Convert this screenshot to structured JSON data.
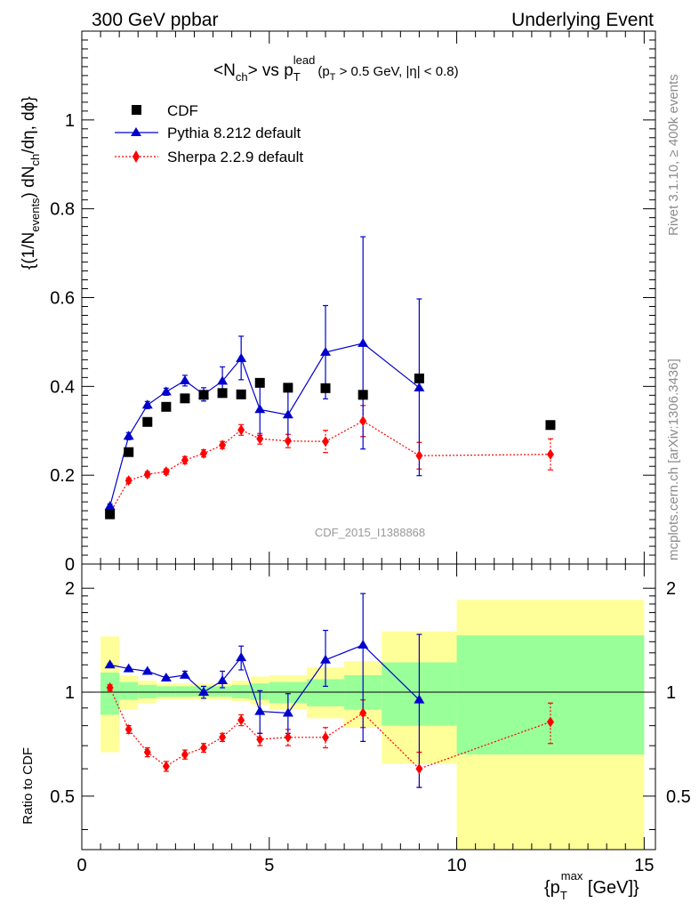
{
  "header": {
    "left": "300 GeV ppbar",
    "right": "Underlying Event"
  },
  "side_labels": {
    "rivet": "Rivet 3.1.10, ≥ 400k events",
    "mcplots": "mcplots.cern.ch [arXiv:1306.3436]"
  },
  "plot_title": {
    "main": "<N",
    "main_sub": "ch",
    "mid": "> vs p",
    "mid_sub": "T",
    "mid_sup": "lead",
    "cut_open": "(p",
    "cut_sub": "T",
    "cut_rest": " > 0.5 GeV, |η| < 0.8)"
  },
  "axis_labels": {
    "y_p1": "{(1/N",
    "y_sub1": "events",
    "y_p2": ") dN",
    "y_sub2": "ch",
    "y_p3": "/dη, dϕ}",
    "ratio_y": "Ratio to CDF",
    "x_p1": "{p",
    "x_sub": "T",
    "x_sup": "max",
    "x_p2": " [GeV]}"
  },
  "analysis_id": "CDF_2015_I1388868",
  "colors": {
    "data": "#000000",
    "pythia": "#0000cc",
    "sherpa": "#ff0000",
    "band_inner": "#99ff99",
    "band_outer": "#ffff99"
  },
  "chart_data": [
    {
      "type": "scatter",
      "panel": "main",
      "xlim": [
        0,
        15.3
      ],
      "ylim": [
        0,
        1.2
      ],
      "x_ticks": [
        0,
        5,
        10,
        15
      ],
      "y_ticks": [
        0,
        0.2,
        0.4,
        0.6,
        0.8,
        1
      ],
      "y_tick_labels": [
        "0",
        "0.2",
        "0.4",
        "0.6",
        "0.8",
        "1"
      ],
      "legend": "top-left",
      "series": [
        {
          "name": "CDF",
          "marker": "square",
          "x": [
            0.75,
            1.25,
            1.75,
            2.25,
            2.75,
            3.25,
            3.75,
            4.25,
            4.75,
            5.5,
            6.5,
            7.5,
            9.0,
            12.5
          ],
          "y": [
            0.112,
            0.252,
            0.32,
            0.354,
            0.373,
            0.381,
            0.385,
            0.382,
            0.408,
            0.397,
            0.396,
            0.381,
            0.418,
            0.313
          ]
        },
        {
          "name": "Pythia 8.212 default",
          "marker": "triangle",
          "line": "solid",
          "x": [
            0.75,
            1.25,
            1.75,
            2.25,
            2.75,
            3.25,
            3.75,
            4.25,
            4.75,
            5.5,
            6.5,
            7.5,
            9.0
          ],
          "y": [
            0.13,
            0.288,
            0.358,
            0.388,
            0.413,
            0.382,
            0.412,
            0.463,
            0.348,
            0.336,
            0.477,
            0.497,
            0.397
          ],
          "err_lo": [
            0.005,
            0.008,
            0.008,
            0.008,
            0.012,
            0.015,
            0.02,
            0.048,
            0.058,
            0.055,
            0.105,
            0.238,
            0.198
          ],
          "err_hi": [
            0.005,
            0.008,
            0.008,
            0.008,
            0.012,
            0.015,
            0.032,
            0.05,
            0.058,
            0.055,
            0.105,
            0.24,
            0.2
          ]
        },
        {
          "name": "Sherpa 2.2.9 default",
          "marker": "diamond",
          "line": "dotted",
          "x": [
            0.75,
            1.25,
            1.75,
            2.25,
            2.75,
            3.25,
            3.75,
            4.25,
            4.75,
            5.5,
            6.5,
            7.5,
            9.0,
            12.5
          ],
          "y": [
            0.115,
            0.188,
            0.202,
            0.208,
            0.234,
            0.249,
            0.268,
            0.302,
            0.282,
            0.277,
            0.276,
            0.322,
            0.244,
            0.247
          ],
          "err_lo": [
            0.005,
            0.006,
            0.006,
            0.006,
            0.008,
            0.008,
            0.008,
            0.012,
            0.012,
            0.015,
            0.025,
            0.035,
            0.03,
            0.035
          ],
          "err_hi": [
            0.005,
            0.006,
            0.006,
            0.006,
            0.008,
            0.008,
            0.008,
            0.012,
            0.012,
            0.015,
            0.025,
            0.035,
            0.03,
            0.035
          ]
        }
      ]
    },
    {
      "type": "scatter",
      "panel": "ratio",
      "ylabel": "Ratio to CDF",
      "xlim": [
        0,
        15.3
      ],
      "ylim": [
        0.35,
        2.35
      ],
      "log_y": true,
      "x_ticks": [
        0,
        5,
        10,
        15
      ],
      "x_tick_labels": [
        "0",
        "5",
        "10",
        "15"
      ],
      "y_ticks": [
        0.5,
        1,
        2
      ],
      "y_tick_labels": [
        "0.5",
        "1",
        "2"
      ],
      "reference_line": 1,
      "uncertainty_bands": [
        {
          "x0": 0.5,
          "x1": 1.0,
          "inner": [
            0.86,
            1.14
          ],
          "outer": [
            0.67,
            1.45
          ]
        },
        {
          "x0": 1.0,
          "x1": 1.5,
          "inner": [
            0.95,
            1.07
          ],
          "outer": [
            0.89,
            1.12
          ]
        },
        {
          "x0": 1.5,
          "x1": 2.0,
          "inner": [
            0.96,
            1.05
          ],
          "outer": [
            0.93,
            1.08
          ]
        },
        {
          "x0": 2.0,
          "x1": 2.5,
          "inner": [
            0.97,
            1.04
          ],
          "outer": [
            0.95,
            1.06
          ]
        },
        {
          "x0": 2.5,
          "x1": 3.0,
          "inner": [
            0.97,
            1.04
          ],
          "outer": [
            0.95,
            1.06
          ]
        },
        {
          "x0": 3.0,
          "x1": 3.5,
          "inner": [
            0.97,
            1.04
          ],
          "outer": [
            0.95,
            1.06
          ]
        },
        {
          "x0": 3.5,
          "x1": 4.0,
          "inner": [
            0.97,
            1.04
          ],
          "outer": [
            0.95,
            1.06
          ]
        },
        {
          "x0": 4.0,
          "x1": 4.5,
          "inner": [
            0.96,
            1.05
          ],
          "outer": [
            0.94,
            1.08
          ]
        },
        {
          "x0": 4.5,
          "x1": 5.0,
          "inner": [
            0.95,
            1.06
          ],
          "outer": [
            0.92,
            1.11
          ]
        },
        {
          "x0": 5.0,
          "x1": 6.0,
          "inner": [
            0.93,
            1.07
          ],
          "outer": [
            0.89,
            1.12
          ]
        },
        {
          "x0": 6.0,
          "x1": 7.0,
          "inner": [
            0.91,
            1.09
          ],
          "outer": [
            0.84,
            1.18
          ]
        },
        {
          "x0": 7.0,
          "x1": 8.0,
          "inner": [
            0.89,
            1.12
          ],
          "outer": [
            0.79,
            1.23
          ]
        },
        {
          "x0": 8.0,
          "x1": 10.0,
          "inner": [
            0.8,
            1.22
          ],
          "outer": [
            0.62,
            1.5
          ]
        },
        {
          "x0": 10.0,
          "x1": 15.0,
          "inner": [
            0.66,
            1.46
          ],
          "outer": [
            0.35,
            1.85
          ]
        }
      ],
      "series": [
        {
          "name": "Pythia 8.212 default",
          "x": [
            0.75,
            1.25,
            1.75,
            2.25,
            2.75,
            3.25,
            3.75,
            4.25,
            4.75,
            5.5,
            6.5,
            7.5,
            9.0
          ],
          "y": [
            1.2,
            1.17,
            1.15,
            1.1,
            1.12,
            1.0,
            1.08,
            1.26,
            0.88,
            0.87,
            1.24,
            1.37,
            0.95
          ],
          "err_lo": [
            0.01,
            0.01,
            0.01,
            0.01,
            0.02,
            0.04,
            0.05,
            0.1,
            0.12,
            0.11,
            0.2,
            0.65,
            0.42
          ],
          "err_hi": [
            0.01,
            0.01,
            0.01,
            0.01,
            0.03,
            0.04,
            0.07,
            0.1,
            0.13,
            0.12,
            0.27,
            0.56,
            0.52
          ]
        },
        {
          "name": "Sherpa 2.2.9 default",
          "x": [
            0.75,
            1.25,
            1.75,
            2.25,
            2.75,
            3.25,
            3.75,
            4.25,
            4.75,
            5.5,
            6.5,
            7.5,
            9.0,
            12.5
          ],
          "y": [
            1.03,
            0.78,
            0.67,
            0.61,
            0.66,
            0.69,
            0.74,
            0.83,
            0.73,
            0.74,
            0.74,
            0.87,
            0.6,
            0.82
          ],
          "err_lo": [
            0.02,
            0.02,
            0.02,
            0.02,
            0.02,
            0.02,
            0.02,
            0.03,
            0.03,
            0.04,
            0.05,
            0.08,
            0.07,
            0.11
          ],
          "err_hi": [
            0.02,
            0.02,
            0.02,
            0.02,
            0.02,
            0.02,
            0.02,
            0.03,
            0.03,
            0.04,
            0.05,
            0.08,
            0.07,
            0.11
          ]
        }
      ]
    }
  ]
}
